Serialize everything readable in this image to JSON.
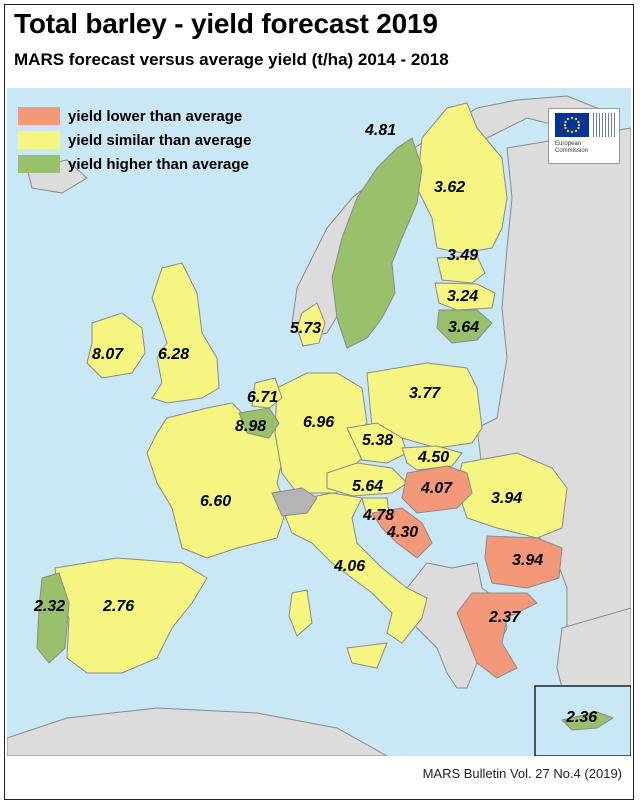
{
  "header": {
    "title": "Total barley - yield forecast 2019",
    "subtitle": "MARS forecast versus average yield (t/ha) 2014 - 2018"
  },
  "legend": [
    {
      "label": "yield lower than average",
      "color": "#f4987a"
    },
    {
      "label": "yield similar than average",
      "color": "#f5f582"
    },
    {
      "label": "yield higher than average",
      "color": "#99c06a"
    }
  ],
  "colors": {
    "sea": "#c9e7f4",
    "non_eu": "#dcdcdc",
    "no_data": "#b4b4b4",
    "border": "#8a8a8a"
  },
  "logo": {
    "line1": "European",
    "line2": "Commission"
  },
  "values": {
    "sweden": "4.81",
    "finland": "3.62",
    "estonia": "3.49",
    "latvia": "3.24",
    "lithuania": "3.64",
    "denmark": "5.73",
    "ireland": "8.07",
    "uk": "6.28",
    "netherlands": "6.71",
    "belgium": "8.98",
    "germany": "6.96",
    "poland": "3.77",
    "czechia": "5.38",
    "slovakia": "4.50",
    "hungary": "4.07",
    "austria": "5.64",
    "slovenia": "4.78",
    "croatia": "4.30",
    "romania": "3.94",
    "bulgaria": "3.94",
    "greece": "2.37",
    "italy": "4.06",
    "france": "6.60",
    "spain": "2.76",
    "portugal": "2.32",
    "cyprus": "2.36"
  },
  "footer": "MARS Bulletin Vol. 27 No.4 (2019)"
}
